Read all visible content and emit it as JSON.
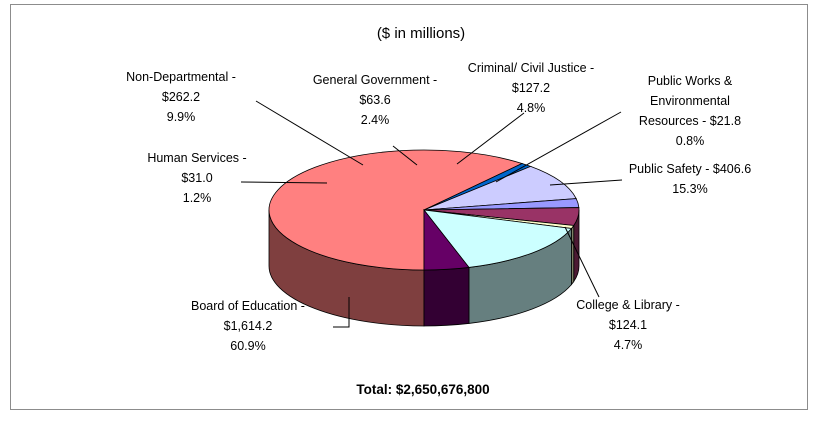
{
  "chart_data": {
    "type": "pie",
    "title": "($ in millions)",
    "total_label": "Total: $2,650,676,800",
    "slices": [
      {
        "name": "Board of Education",
        "value": 1614.2,
        "percent": 60.9,
        "color": "#ff8080",
        "side_color": "#7f3f3f",
        "label_lines": [
          "Board of Education -",
          "$1,614.2",
          "60.9%"
        ]
      },
      {
        "name": "Human Services",
        "value": 31.0,
        "percent": 1.2,
        "color": "#0066cc",
        "side_color": "#00335f",
        "label_lines": [
          "Human Services -",
          "$31.0",
          "1.2%"
        ]
      },
      {
        "name": "Non-Departmental",
        "value": 262.2,
        "percent": 9.9,
        "color": "#ccccff",
        "side_color": "#66667f",
        "label_lines": [
          "Non-Departmental -",
          "$262.2",
          "9.9%"
        ]
      },
      {
        "name": "General Government",
        "value": 63.6,
        "percent": 2.4,
        "color": "#9999ff",
        "side_color": "#4c4c7f",
        "label_lines": [
          "General Government -",
          "$63.6",
          "2.4%"
        ]
      },
      {
        "name": "Criminal/ Civil Justice",
        "value": 127.2,
        "percent": 4.8,
        "color": "#993366",
        "side_color": "#4c1933",
        "label_lines": [
          "Criminal/ Civil Justice -",
          "$127.2",
          "4.8%"
        ]
      },
      {
        "name": "Public Works & Environmental Resources",
        "value": 21.8,
        "percent": 0.8,
        "color": "#ffffcc",
        "side_color": "#7f7f66",
        "label_lines": [
          "Public Works &",
          "Environmental",
          "Resources - $21.8",
          "0.8%"
        ]
      },
      {
        "name": "Public Safety",
        "value": 406.6,
        "percent": 15.3,
        "color": "#ccffff",
        "side_color": "#667f7f",
        "label_lines": [
          "Public Safety - $406.6",
          "15.3%"
        ]
      },
      {
        "name": "College & Library",
        "value": 124.1,
        "percent": 4.7,
        "color": "#660066",
        "side_color": "#330033",
        "label_lines": [
          "College & Library -",
          "$124.1",
          "4.7%"
        ]
      }
    ]
  }
}
